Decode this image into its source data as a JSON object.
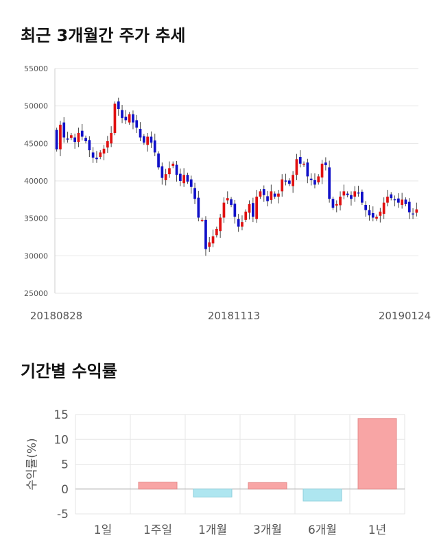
{
  "sections": {
    "price_trend_title": "최근 3개월간 주가 추세",
    "returns_title": "기간별 수익률"
  },
  "colors": {
    "up": "#e01010",
    "down": "#1010c8",
    "positive_bar": "#f8a5a5",
    "negative_bar": "#aee6f0",
    "grid": "#e6e6e6",
    "axis_text": "#555555"
  },
  "chart_data": [
    {
      "type": "candlestick",
      "title": "최근 3개월간 주가 추세",
      "ylim": [
        25000,
        55000
      ],
      "y_ticks": [
        25000,
        30000,
        35000,
        40000,
        45000,
        50000,
        55000
      ],
      "x_tick_labels": [
        "20180828",
        "20181113",
        "20190124"
      ],
      "grid": true,
      "closes": [
        44200,
        47500,
        45800,
        45600,
        46100,
        45200,
        46400,
        45900,
        45300,
        44100,
        43100,
        42900,
        43800,
        44300,
        45300,
        46400,
        50300,
        49600,
        48400,
        48100,
        48900,
        47800,
        47100,
        45800,
        45100,
        45900,
        45100,
        43800,
        41800,
        40400,
        40900,
        41700,
        42300,
        40800,
        40000,
        40800,
        39900,
        39200,
        37600,
        35100,
        34800,
        30900,
        31800,
        32600,
        33600,
        35100,
        37100,
        37700,
        36800,
        35200,
        33900,
        34500,
        35900,
        36900,
        35200,
        37900,
        38600,
        38100,
        37300,
        38600,
        37900,
        38300,
        40200,
        39900,
        39600,
        40800,
        42900,
        42300,
        42300,
        40600,
        40100,
        39500,
        40600,
        42300,
        42100,
        37600,
        36400,
        36900,
        37900,
        38600,
        38100,
        37600,
        38600,
        38400,
        37100,
        36100,
        35400,
        35100,
        35200,
        35900,
        37100,
        37900,
        37700,
        37500,
        37100,
        37500,
        36900,
        35800,
        35600,
        36200
      ]
    },
    {
      "type": "bar",
      "ylabel": "수익률(%)",
      "ylim": [
        -5,
        15
      ],
      "y_ticks": [
        -5,
        0,
        5,
        10,
        15
      ],
      "categories": [
        "1일",
        "1주일",
        "1개월",
        "3개월",
        "6개월",
        "1년"
      ],
      "values": [
        0,
        1.4,
        -1.6,
        1.3,
        -2.4,
        14.2
      ],
      "grid": true
    }
  ]
}
